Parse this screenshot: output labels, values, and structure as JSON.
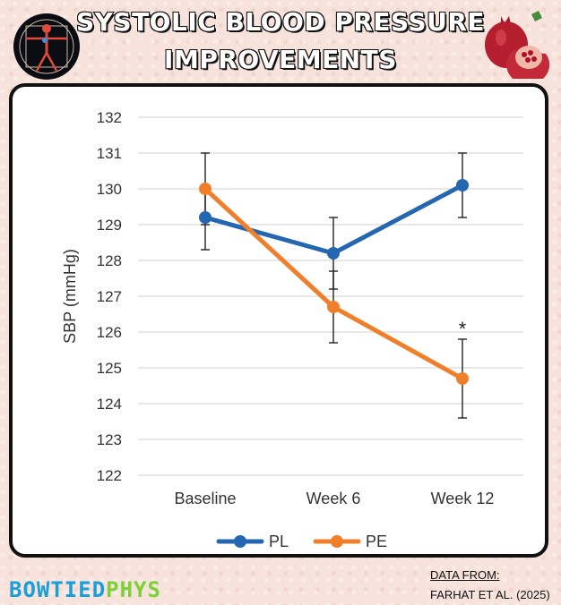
{
  "header": {
    "title_line1": "SYSTOLIC BLOOD PRESSURE",
    "title_line2": "IMPROVEMENTS"
  },
  "footer": {
    "brand_part1": "BOWTIED",
    "brand_part2": "PHYS",
    "source_label": "DATA FROM:",
    "source_citation": "FARHAT ET AL.  (2025)"
  },
  "icons": {
    "left_logo": "human-anatomy-icon",
    "right_logo": "pomegranate-icon"
  },
  "colors": {
    "PL": "#2566b0",
    "PE": "#f07f2c",
    "brand_blue": "#1aa0d8",
    "brand_green": "#7bd136"
  },
  "chart_data": {
    "type": "line",
    "title": "",
    "xlabel": "",
    "ylabel": "SBP (mmHg)",
    "categories": [
      "Baseline",
      "Week 6",
      "Week 12"
    ],
    "ylim": [
      122,
      132
    ],
    "yticks": [
      122,
      123,
      124,
      125,
      126,
      127,
      128,
      129,
      130,
      131,
      132
    ],
    "grid": true,
    "legend_position": "bottom-center",
    "series": [
      {
        "name": "PL",
        "color": "#2566b0",
        "values": [
          129.2,
          128.2,
          130.1
        ],
        "error": [
          0.9,
          1.0,
          0.9
        ]
      },
      {
        "name": "PE",
        "color": "#f07f2c",
        "values": [
          130.0,
          126.7,
          124.7
        ],
        "error": [
          1.0,
          1.0,
          1.1
        ]
      }
    ],
    "annotations": [
      {
        "category": "Week 12",
        "text": "*"
      }
    ]
  }
}
